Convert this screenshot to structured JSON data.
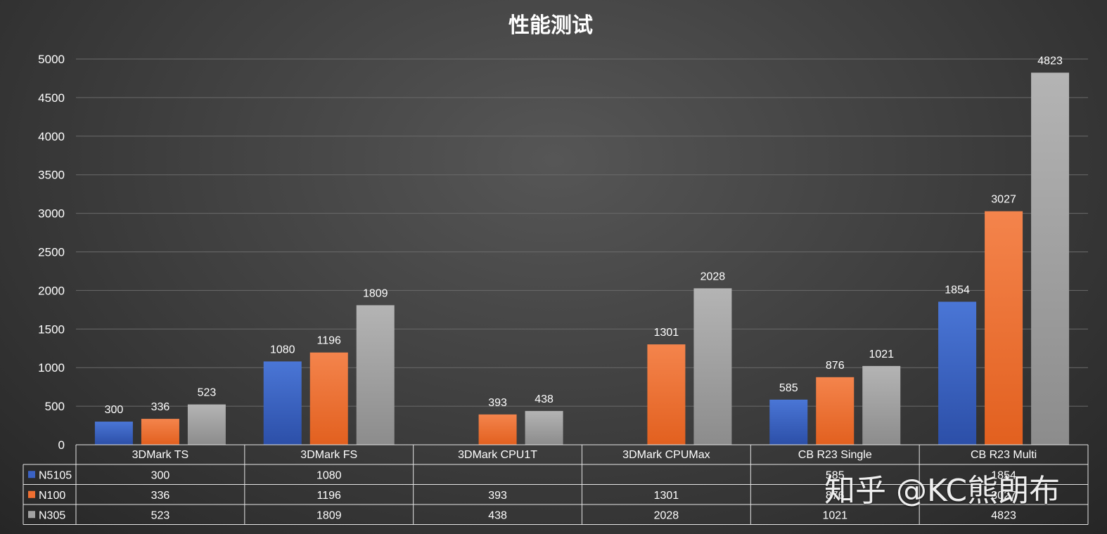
{
  "chart_data": {
    "type": "bar",
    "title": "性能测试",
    "categories": [
      "3DMark TS",
      "3DMark FS",
      "3DMark CPU1T",
      "3DMark CPUMax",
      "CB R23 Single",
      "CB R23 Multi"
    ],
    "series": [
      {
        "name": "N5105",
        "color": "#3a62c4",
        "values": [
          300,
          1080,
          null,
          null,
          585,
          1854
        ]
      },
      {
        "name": "N100",
        "color": "#ef6f31",
        "values": [
          336,
          1196,
          393,
          1301,
          876,
          3027
        ]
      },
      {
        "name": "N305",
        "color": "#a2a2a2",
        "values": [
          523,
          1809,
          438,
          2028,
          1021,
          4823
        ]
      }
    ],
    "ylim": [
      0,
      5000
    ],
    "yticks": [
      0,
      500,
      1000,
      1500,
      2000,
      2500,
      3000,
      3500,
      4000,
      4500,
      5000
    ],
    "grid": true,
    "legend": "data-table"
  },
  "watermark": "知乎 @KC熊朗布"
}
